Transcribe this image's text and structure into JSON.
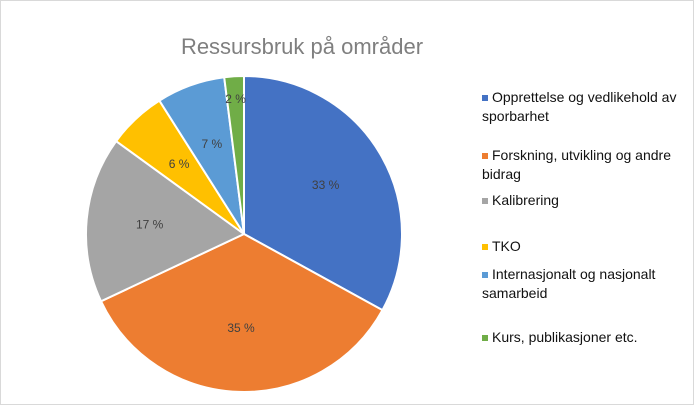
{
  "chart_data": {
    "type": "pie",
    "title": "Ressursbruk på områder",
    "categories": [
      "Opprettelse og vedlikehold av sporbarhet",
      "Forskning, utvikling og andre bidrag",
      "Kalibrering",
      "TKO",
      "Internasjonalt og nasjonalt samarbeid",
      "Kurs, publikasjoner etc."
    ],
    "values": [
      33,
      35,
      17,
      6,
      7,
      2
    ],
    "value_labels": [
      "33 %",
      "35 %",
      "17 %",
      "6 %",
      "7 %",
      "2 %"
    ],
    "colors": [
      "#4472c4",
      "#ed7d31",
      "#a5a5a5",
      "#ffc000",
      "#5b9bd5",
      "#70ad47"
    ]
  }
}
